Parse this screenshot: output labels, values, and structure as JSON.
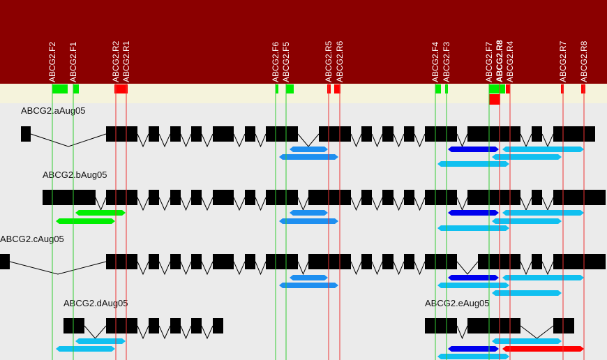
{
  "primers": [
    {
      "label": "ABCG2.F2"
    },
    {
      "label": "ABCG2.F1"
    },
    {
      "label": "ABCG2.R2"
    },
    {
      "label": "ABCG2.R1"
    },
    {
      "label": "ABCG2.F6"
    },
    {
      "label": "ABCG2.F5"
    },
    {
      "label": "ABCG2.R5"
    },
    {
      "label": "ABCG2.R6"
    },
    {
      "label": "ABCG2.F4"
    },
    {
      "label": "ABCG2.F3"
    },
    {
      "label": "ABCG2.F7"
    },
    {
      "label": "ABCG2.R8",
      "bold": true
    },
    {
      "label": "ABCG2.R4"
    },
    {
      "label": "ABCG2.R7"
    },
    {
      "label": "ABCG2.R8"
    }
  ],
  "transcripts": [
    {
      "label": "ABCG2.aAug05"
    },
    {
      "label": "ABCG2.bAug05"
    },
    {
      "label": "ABCG2.cAug05"
    },
    {
      "label": "ABCG2.dAug05"
    },
    {
      "label": "ABCG2.eAug05"
    }
  ]
}
